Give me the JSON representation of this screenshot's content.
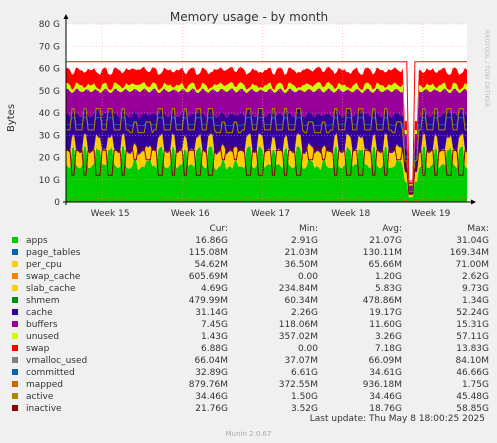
{
  "chart_data": {
    "type": "area",
    "title": "Memory usage - by month",
    "ylabel": "Bytes",
    "ylim": [
      0,
      80
    ],
    "y_unit": "G",
    "y_ticks": [
      "0",
      "10 G",
      "20 G",
      "30 G",
      "40 G",
      "50 G",
      "60 G",
      "70 G",
      "80 G"
    ],
    "x_ticks": [
      "Week 15",
      "Week 16",
      "Week 17",
      "Week 18",
      "Week 19"
    ],
    "grid": true,
    "legend_position": "bottom",
    "watermark": "RRDTOOL / TOBI OETIKER",
    "stacked_series": [
      {
        "name": "apps",
        "avg_gb": 21.07,
        "color": "#00cc00"
      },
      {
        "name": "page_tables",
        "avg_gb": 0.13,
        "color": "#0066b3"
      },
      {
        "name": "per_cpu",
        "avg_gb": 0.066,
        "color": "#ff8000"
      },
      {
        "name": "swap_cache",
        "avg_gb": 1.2,
        "color": "#ffcc00"
      },
      {
        "name": "slab_cache",
        "avg_gb": 5.83,
        "color": "#ffcc00"
      },
      {
        "name": "shmem",
        "avg_gb": 0.48,
        "color": "#330099"
      },
      {
        "name": "cache",
        "avg_gb": 19.17,
        "color": "#330099"
      },
      {
        "name": "buffers",
        "avg_gb": 11.6,
        "color": "#990099"
      },
      {
        "name": "unused",
        "avg_gb": 3.26,
        "color": "#ccff00"
      },
      {
        "name": "swap",
        "avg_gb": 7.18,
        "color": "#ff0000"
      }
    ],
    "line_series": [
      {
        "name": "committed",
        "avg_gb": 34.61,
        "color": "#0066b3"
      },
      {
        "name": "mapped",
        "avg_gb": 0.94,
        "color": "#cc6600"
      },
      {
        "name": "active",
        "avg_gb": 34.46,
        "color": "#aa8800"
      },
      {
        "name": "inactive",
        "avg_gb": 18.76,
        "color": "#880000"
      }
    ],
    "total_line_gb": 63
  },
  "legend": {
    "headers": {
      "cur": "Cur:",
      "min": "Min:",
      "avg": "Avg:",
      "max": "Max:"
    },
    "rows": [
      {
        "name": "apps",
        "color": "#00cc00",
        "cur": "16.86G",
        "min": "2.91G",
        "avg": "21.07G",
        "max": "31.04G"
      },
      {
        "name": "page_tables",
        "color": "#0066b3",
        "cur": "115.08M",
        "min": "21.03M",
        "avg": "130.11M",
        "max": "169.34M"
      },
      {
        "name": "per_cpu",
        "color": "#ffcc00",
        "cur": "54.62M",
        "min": "36.50M",
        "avg": "65.66M",
        "max": "71.00M"
      },
      {
        "name": "swap_cache",
        "color": "#ff8000",
        "cur": "605.69M",
        "min": "0.00",
        "avg": "1.20G",
        "max": "2.62G"
      },
      {
        "name": "slab_cache",
        "color": "#ffcc00",
        "cur": "4.69G",
        "min": "234.84M",
        "avg": "5.83G",
        "max": "9.73G"
      },
      {
        "name": "shmem",
        "color": "#008f00",
        "cur": "479.99M",
        "min": "60.34M",
        "avg": "478.86M",
        "max": "1.34G"
      },
      {
        "name": "cache",
        "color": "#330099",
        "cur": "31.14G",
        "min": "2.26G",
        "avg": "19.17G",
        "max": "52.24G"
      },
      {
        "name": "buffers",
        "color": "#990099",
        "cur": "7.45G",
        "min": "118.06M",
        "avg": "11.60G",
        "max": "15.31G"
      },
      {
        "name": "unused",
        "color": "#ccff00",
        "cur": "1.43G",
        "min": "357.02M",
        "avg": "3.26G",
        "max": "57.11G"
      },
      {
        "name": "swap",
        "color": "#ff0000",
        "cur": "6.88G",
        "min": "0.00",
        "avg": "7.18G",
        "max": "13.83G"
      },
      {
        "name": "vmalloc_used",
        "color": "#808080",
        "cur": "66.04M",
        "min": "37.07M",
        "avg": "66.09M",
        "max": "84.10M"
      },
      {
        "name": "committed",
        "color": "#0066b3",
        "cur": "32.89G",
        "min": "6.61G",
        "avg": "34.61G",
        "max": "46.66G"
      },
      {
        "name": "mapped",
        "color": "#cc6600",
        "cur": "879.76M",
        "min": "372.55M",
        "avg": "936.18M",
        "max": "1.75G"
      },
      {
        "name": "active",
        "color": "#aa8800",
        "cur": "34.46G",
        "min": "1.50G",
        "avg": "34.46G",
        "max": "45.48G"
      },
      {
        "name": "inactive",
        "color": "#880000",
        "cur": "21.76G",
        "min": "3.52G",
        "avg": "18.76G",
        "max": "58.85G"
      }
    ]
  },
  "footer": {
    "last_update": "Last update: Thu May  8 18:00:25 2025",
    "version": "Munin 2.0.67"
  }
}
